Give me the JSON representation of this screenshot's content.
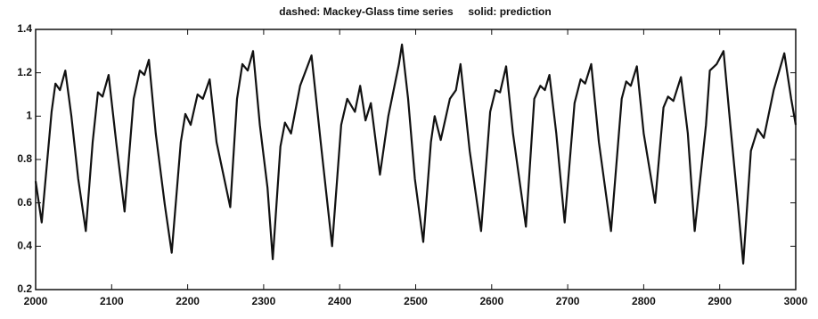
{
  "chart_data": {
    "type": "line",
    "title": "dashed: Mackey-Glass time series     solid: prediction",
    "x": [
      2000,
      2008,
      2021,
      2026,
      2032,
      2039,
      2047,
      2056,
      2066,
      2075,
      2082,
      2088,
      2096,
      2106,
      2117,
      2129,
      2137,
      2143,
      2149,
      2158,
      2170,
      2179,
      2191,
      2197,
      2204,
      2213,
      2220,
      2229,
      2238,
      2256,
      2265,
      2272,
      2279,
      2286,
      2295,
      2305,
      2312,
      2322,
      2328,
      2336,
      2348,
      2363,
      2375,
      2390,
      2402,
      2410,
      2420,
      2427,
      2434,
      2441,
      2453,
      2464,
      2478,
      2482,
      2490,
      2499,
      2510,
      2520,
      2525,
      2533,
      2545,
      2553,
      2559,
      2571,
      2586,
      2598,
      2605,
      2611,
      2619,
      2628,
      2645,
      2656,
      2664,
      2670,
      2676,
      2685,
      2696,
      2709,
      2717,
      2723,
      2731,
      2741,
      2757,
      2771,
      2777,
      2783,
      2791,
      2800,
      2815,
      2826,
      2832,
      2839,
      2849,
      2858,
      2867,
      2882,
      2887,
      2896,
      2905,
      2914,
      2924,
      2931,
      2941,
      2950,
      2958,
      2971,
      2985,
      2994,
      3000
    ],
    "values": [
      0.7,
      0.51,
      1.02,
      1.15,
      1.12,
      1.21,
      1.0,
      0.71,
      0.47,
      0.88,
      1.11,
      1.09,
      1.19,
      0.88,
      0.56,
      1.08,
      1.21,
      1.19,
      1.26,
      0.92,
      0.59,
      0.37,
      0.88,
      1.01,
      0.96,
      1.1,
      1.08,
      1.17,
      0.88,
      0.58,
      1.08,
      1.24,
      1.21,
      1.3,
      0.96,
      0.67,
      0.34,
      0.86,
      0.97,
      0.92,
      1.14,
      1.28,
      0.88,
      0.4,
      0.96,
      1.08,
      1.02,
      1.14,
      0.98,
      1.06,
      0.73,
      1.0,
      1.24,
      1.33,
      1.08,
      0.71,
      0.42,
      0.88,
      1.0,
      0.89,
      1.08,
      1.12,
      1.24,
      0.84,
      0.47,
      1.02,
      1.12,
      1.11,
      1.23,
      0.92,
      0.49,
      1.08,
      1.14,
      1.12,
      1.19,
      0.92,
      0.51,
      1.06,
      1.17,
      1.15,
      1.24,
      0.88,
      0.47,
      1.08,
      1.16,
      1.14,
      1.23,
      0.92,
      0.6,
      1.04,
      1.09,
      1.07,
      1.18,
      0.92,
      0.47,
      0.96,
      1.21,
      1.24,
      1.3,
      0.96,
      0.59,
      0.32,
      0.84,
      0.94,
      0.9,
      1.12,
      1.29,
      1.08,
      0.96
    ],
    "color": "#111111",
    "xlim": [
      2000,
      3000
    ],
    "xticks": [
      2000,
      2100,
      2200,
      2300,
      2400,
      2500,
      2600,
      2700,
      2800,
      2900,
      3000
    ],
    "ylim": [
      0.2,
      1.4
    ],
    "yticks": [
      0.2,
      0.4,
      0.6,
      0.8,
      1,
      1.2,
      1.4
    ]
  }
}
